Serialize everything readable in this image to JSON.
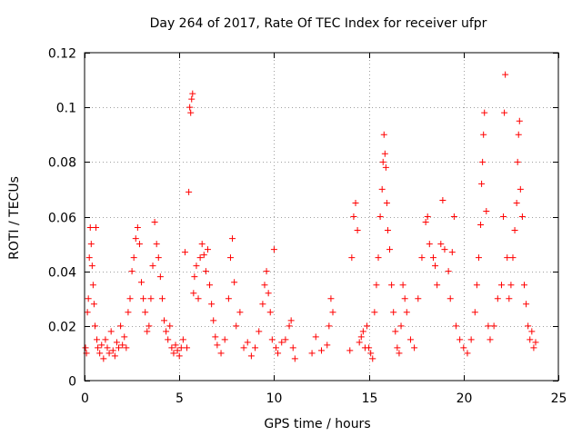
{
  "chart_data": {
    "type": "scatter",
    "title": "Day 264 of 2017, Rate Of TEC Index for receiver ufpr",
    "xlabel": "GPS time / hours",
    "ylabel": "ROTI / TECUs",
    "xlim": [
      0,
      25
    ],
    "ylim": [
      0,
      0.12
    ],
    "x_ticks": [
      "0",
      "5",
      "10",
      "15",
      "20",
      "25"
    ],
    "y_ticks": [
      "0",
      "0.02",
      "0.04",
      "0.06",
      "0.08",
      "0.1",
      "0.12"
    ],
    "grid": true,
    "marker": "+",
    "marker_color": "#ff0000",
    "series": [
      {
        "points": [
          [
            0.05,
            0.012
          ],
          [
            0.1,
            0.01
          ],
          [
            0.15,
            0.025
          ],
          [
            0.2,
            0.03
          ],
          [
            0.25,
            0.045
          ],
          [
            0.3,
            0.056
          ],
          [
            0.35,
            0.05
          ],
          [
            0.4,
            0.042
          ],
          [
            0.45,
            0.035
          ],
          [
            0.5,
            0.028
          ],
          [
            0.55,
            0.02
          ],
          [
            0.6,
            0.056
          ],
          [
            0.65,
            0.015
          ],
          [
            0.7,
            0.012
          ],
          [
            0.8,
            0.01
          ],
          [
            0.9,
            0.013
          ],
          [
            1.0,
            0.008
          ],
          [
            1.1,
            0.015
          ],
          [
            1.2,
            0.012
          ],
          [
            1.3,
            0.01
          ],
          [
            1.4,
            0.018
          ],
          [
            1.5,
            0.011
          ],
          [
            1.6,
            0.009
          ],
          [
            1.7,
            0.014
          ],
          [
            1.8,
            0.012
          ],
          [
            1.9,
            0.02
          ],
          [
            2.0,
            0.013
          ],
          [
            2.1,
            0.016
          ],
          [
            2.2,
            0.012
          ],
          [
            2.3,
            0.025
          ],
          [
            2.4,
            0.03
          ],
          [
            2.5,
            0.04
          ],
          [
            2.6,
            0.045
          ],
          [
            2.7,
            0.052
          ],
          [
            2.8,
            0.056
          ],
          [
            2.9,
            0.05
          ],
          [
            3.0,
            0.036
          ],
          [
            3.1,
            0.03
          ],
          [
            3.2,
            0.025
          ],
          [
            3.3,
            0.018
          ],
          [
            3.4,
            0.02
          ],
          [
            3.5,
            0.03
          ],
          [
            3.6,
            0.042
          ],
          [
            3.7,
            0.058
          ],
          [
            3.8,
            0.05
          ],
          [
            3.9,
            0.045
          ],
          [
            4.0,
            0.038
          ],
          [
            4.1,
            0.03
          ],
          [
            4.2,
            0.022
          ],
          [
            4.3,
            0.018
          ],
          [
            4.4,
            0.015
          ],
          [
            4.5,
            0.02
          ],
          [
            4.6,
            0.012
          ],
          [
            4.7,
            0.01
          ],
          [
            4.8,
            0.013
          ],
          [
            4.9,
            0.011
          ],
          [
            5.0,
            0.009
          ],
          [
            5.1,
            0.012
          ],
          [
            5.2,
            0.015
          ],
          [
            5.3,
            0.047
          ],
          [
            5.4,
            0.012
          ],
          [
            5.5,
            0.069
          ],
          [
            5.55,
            0.1
          ],
          [
            5.6,
            0.098
          ],
          [
            5.65,
            0.103
          ],
          [
            5.7,
            0.105
          ],
          [
            5.75,
            0.032
          ],
          [
            5.8,
            0.038
          ],
          [
            5.9,
            0.042
          ],
          [
            6.0,
            0.03
          ],
          [
            6.1,
            0.045
          ],
          [
            6.2,
            0.05
          ],
          [
            6.3,
            0.046
          ],
          [
            6.4,
            0.04
          ],
          [
            6.5,
            0.048
          ],
          [
            6.6,
            0.035
          ],
          [
            6.7,
            0.028
          ],
          [
            6.8,
            0.022
          ],
          [
            6.9,
            0.016
          ],
          [
            7.0,
            0.013
          ],
          [
            7.2,
            0.01
          ],
          [
            7.4,
            0.015
          ],
          [
            7.6,
            0.03
          ],
          [
            7.7,
            0.045
          ],
          [
            7.8,
            0.052
          ],
          [
            7.9,
            0.036
          ],
          [
            8.0,
            0.02
          ],
          [
            8.2,
            0.025
          ],
          [
            8.4,
            0.012
          ],
          [
            8.6,
            0.014
          ],
          [
            8.8,
            0.009
          ],
          [
            9.0,
            0.012
          ],
          [
            9.2,
            0.018
          ],
          [
            9.4,
            0.028
          ],
          [
            9.5,
            0.035
          ],
          [
            9.6,
            0.04
          ],
          [
            9.7,
            0.032
          ],
          [
            9.8,
            0.025
          ],
          [
            9.9,
            0.015
          ],
          [
            10.0,
            0.048
          ],
          [
            10.1,
            0.012
          ],
          [
            10.2,
            0.01
          ],
          [
            10.4,
            0.014
          ],
          [
            10.6,
            0.015
          ],
          [
            10.8,
            0.02
          ],
          [
            10.9,
            0.022
          ],
          [
            11.0,
            0.012
          ],
          [
            11.1,
            0.008
          ],
          [
            12.0,
            0.01
          ],
          [
            12.2,
            0.016
          ],
          [
            12.5,
            0.011
          ],
          [
            12.8,
            0.013
          ],
          [
            12.9,
            0.02
          ],
          [
            13.0,
            0.03
          ],
          [
            13.1,
            0.025
          ],
          [
            14.0,
            0.011
          ],
          [
            14.1,
            0.045
          ],
          [
            14.2,
            0.06
          ],
          [
            14.3,
            0.065
          ],
          [
            14.4,
            0.055
          ],
          [
            14.5,
            0.014
          ],
          [
            14.6,
            0.016
          ],
          [
            14.7,
            0.018
          ],
          [
            14.8,
            0.012
          ],
          [
            14.9,
            0.02
          ],
          [
            15.0,
            0.012
          ],
          [
            15.1,
            0.01
          ],
          [
            15.2,
            0.008
          ],
          [
            15.3,
            0.025
          ],
          [
            15.4,
            0.035
          ],
          [
            15.5,
            0.045
          ],
          [
            15.6,
            0.06
          ],
          [
            15.7,
            0.07
          ],
          [
            15.75,
            0.08
          ],
          [
            15.8,
            0.09
          ],
          [
            15.85,
            0.083
          ],
          [
            15.9,
            0.078
          ],
          [
            15.95,
            0.065
          ],
          [
            16.0,
            0.055
          ],
          [
            16.1,
            0.048
          ],
          [
            16.2,
            0.035
          ],
          [
            16.3,
            0.025
          ],
          [
            16.4,
            0.018
          ],
          [
            16.5,
            0.012
          ],
          [
            16.6,
            0.01
          ],
          [
            16.7,
            0.02
          ],
          [
            16.8,
            0.035
          ],
          [
            16.9,
            0.03
          ],
          [
            17.0,
            0.025
          ],
          [
            17.2,
            0.015
          ],
          [
            17.4,
            0.012
          ],
          [
            17.6,
            0.03
          ],
          [
            17.8,
            0.045
          ],
          [
            18.0,
            0.058
          ],
          [
            18.1,
            0.06
          ],
          [
            18.2,
            0.05
          ],
          [
            18.4,
            0.045
          ],
          [
            18.5,
            0.042
          ],
          [
            18.6,
            0.035
          ],
          [
            18.8,
            0.05
          ],
          [
            18.9,
            0.066
          ],
          [
            19.0,
            0.048
          ],
          [
            19.2,
            0.04
          ],
          [
            19.3,
            0.03
          ],
          [
            19.4,
            0.047
          ],
          [
            19.5,
            0.06
          ],
          [
            19.6,
            0.02
          ],
          [
            19.8,
            0.015
          ],
          [
            20.0,
            0.012
          ],
          [
            20.2,
            0.01
          ],
          [
            20.4,
            0.015
          ],
          [
            20.6,
            0.025
          ],
          [
            20.7,
            0.035
          ],
          [
            20.8,
            0.045
          ],
          [
            20.9,
            0.057
          ],
          [
            20.95,
            0.072
          ],
          [
            21.0,
            0.08
          ],
          [
            21.05,
            0.09
          ],
          [
            21.1,
            0.098
          ],
          [
            21.2,
            0.062
          ],
          [
            21.3,
            0.02
          ],
          [
            21.4,
            0.015
          ],
          [
            21.6,
            0.02
          ],
          [
            21.8,
            0.03
          ],
          [
            22.0,
            0.035
          ],
          [
            22.1,
            0.06
          ],
          [
            22.15,
            0.098
          ],
          [
            22.2,
            0.112
          ],
          [
            22.3,
            0.045
          ],
          [
            22.4,
            0.03
          ],
          [
            22.5,
            0.035
          ],
          [
            22.6,
            0.045
          ],
          [
            22.7,
            0.055
          ],
          [
            22.8,
            0.065
          ],
          [
            22.85,
            0.08
          ],
          [
            22.9,
            0.09
          ],
          [
            22.95,
            0.095
          ],
          [
            23.0,
            0.07
          ],
          [
            23.1,
            0.06
          ],
          [
            23.2,
            0.035
          ],
          [
            23.3,
            0.028
          ],
          [
            23.4,
            0.02
          ],
          [
            23.5,
            0.015
          ],
          [
            23.6,
            0.018
          ],
          [
            23.7,
            0.012
          ],
          [
            23.8,
            0.014
          ]
        ]
      }
    ]
  }
}
